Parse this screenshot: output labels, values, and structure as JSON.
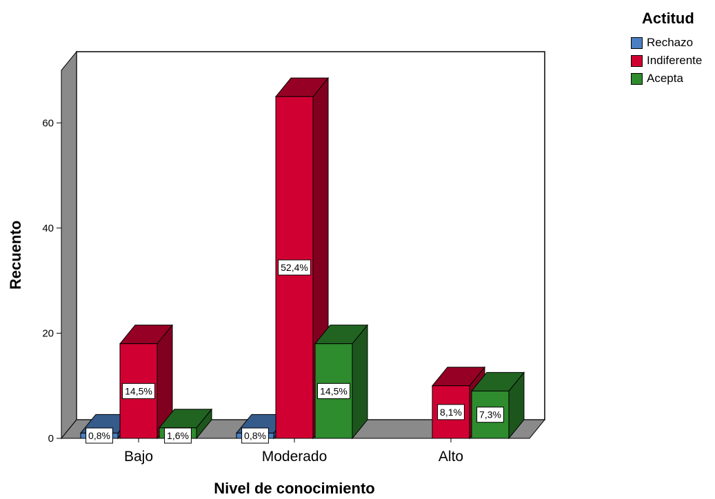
{
  "chart_data": {
    "type": "bar",
    "title": "",
    "xlabel": "Nivel de conocimiento",
    "ylabel": "Recuento",
    "categories": [
      "Bajo",
      "Moderado",
      "Alto"
    ],
    "ylim": [
      0,
      70
    ],
    "yticks": [
      0,
      20,
      40,
      60
    ],
    "grid": false,
    "legend": {
      "title": "Actitud",
      "position": "top-right"
    },
    "series": [
      {
        "name": "Rechazo",
        "color": "#4a7fc1",
        "values": [
          1,
          1,
          0
        ],
        "labels": [
          "0,8%",
          "0,8%",
          ""
        ]
      },
      {
        "name": "Indiferente",
        "color": "#d10032",
        "values": [
          18,
          65,
          10
        ],
        "labels": [
          "14,5%",
          "52,4%",
          "8,1%"
        ]
      },
      {
        "name": "Acepta",
        "color": "#2e8b2e",
        "values": [
          2,
          18,
          9
        ],
        "labels": [
          "1,6%",
          "14,5%",
          "7,3%"
        ]
      }
    ]
  }
}
